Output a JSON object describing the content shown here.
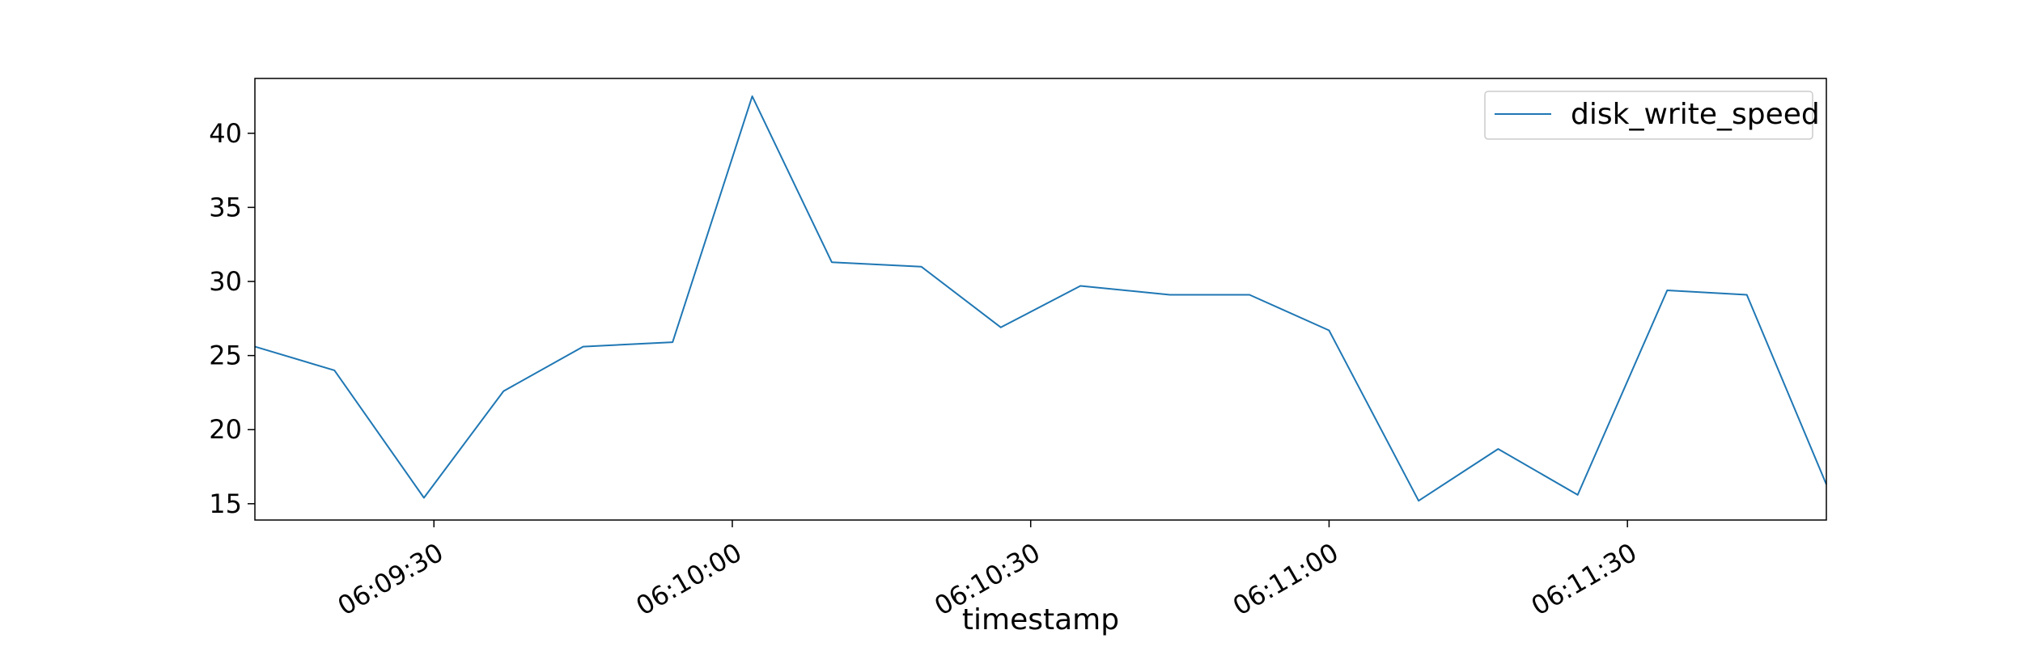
{
  "chart_data": {
    "type": "line",
    "xlabel": "timestamp",
    "ylabel": "",
    "x_axis_type": "time",
    "x_range": [
      "06:09:12",
      "06:11:50"
    ],
    "ylim": [
      13.9,
      43.7
    ],
    "y_ticks": [
      15,
      20,
      25,
      30,
      35,
      40
    ],
    "x_ticks": [
      "06:09:30",
      "06:10:00",
      "06:10:30",
      "06:11:00",
      "06:11:30"
    ],
    "grid": false,
    "legend_position": "top-right",
    "series": [
      {
        "name": "disk_write_speed",
        "color": "#1f77b4",
        "x": [
          "06:09:12",
          "06:09:20",
          "06:09:29",
          "06:09:37",
          "06:09:45",
          "06:09:54",
          "06:10:02",
          "06:10:10",
          "06:10:19",
          "06:10:27",
          "06:10:35",
          "06:10:44",
          "06:10:52",
          "06:11:00",
          "06:11:09",
          "06:11:17",
          "06:11:25",
          "06:11:34",
          "06:11:42",
          "06:11:50"
        ],
        "values": [
          25.6,
          24.0,
          15.4,
          22.6,
          25.6,
          25.9,
          42.5,
          31.3,
          31.0,
          26.9,
          29.7,
          29.1,
          29.1,
          26.7,
          15.2,
          18.7,
          15.6,
          29.4,
          29.1,
          16.3
        ]
      }
    ]
  }
}
